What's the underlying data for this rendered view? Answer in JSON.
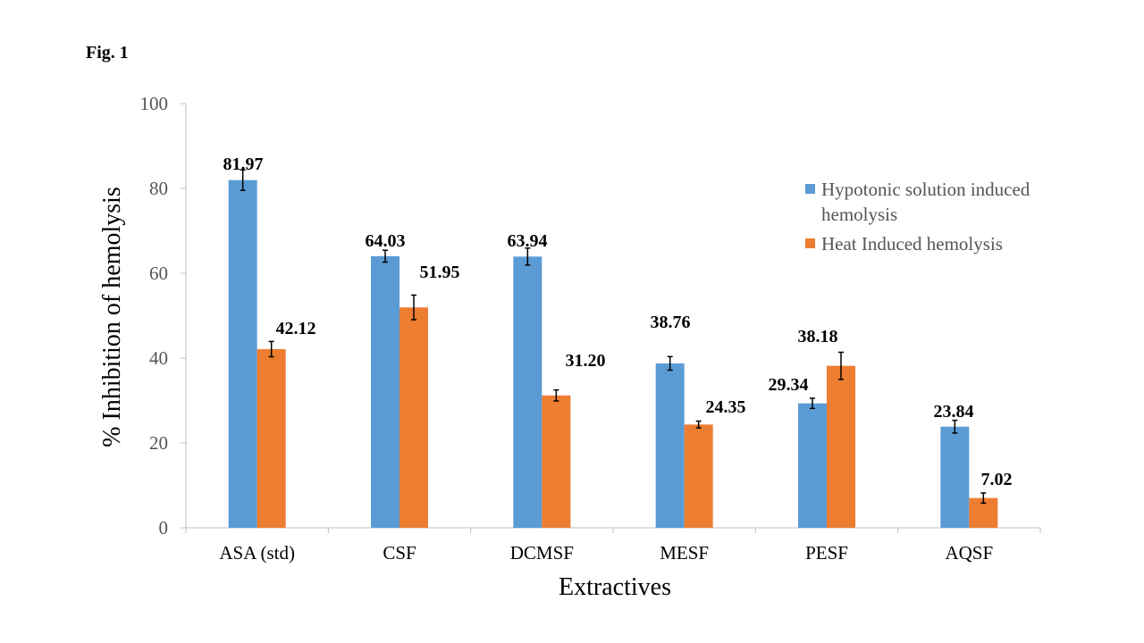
{
  "figure_label": "Fig. 1",
  "chart_data": {
    "type": "bar",
    "categories": [
      "ASA (std)",
      "CSF",
      "DCMSF",
      "MESF",
      "PESF",
      "AQSF"
    ],
    "series": [
      {
        "name": "Hypotonic solution induced hemolysis",
        "legend_lines": [
          "Hypotonic solution induced",
          "hemolysis"
        ],
        "color": "#5B9BD5",
        "values": [
          81.97,
          64.03,
          63.94,
          38.76,
          29.34,
          23.84
        ],
        "errors": [
          2.4,
          1.4,
          2.0,
          1.6,
          1.2,
          1.5
        ],
        "labels": [
          "81.97",
          "64.03",
          "63.94",
          "38.76",
          "29.34",
          "23.84"
        ]
      },
      {
        "name": "Heat Induced hemolysis",
        "legend_lines": [
          "Heat Induced hemolysis"
        ],
        "color": "#ED7D31",
        "values": [
          42.12,
          51.95,
          31.2,
          24.35,
          38.18,
          7.02
        ],
        "errors": [
          1.8,
          2.9,
          1.3,
          0.8,
          3.2,
          1.2
        ],
        "labels": [
          "42.12",
          "51.95",
          "31.20",
          "24.35",
          "38.18",
          "7.02"
        ]
      }
    ],
    "xlabel": "Extractives",
    "ylabel": "%  Inhibition of hemolysis",
    "ylim": [
      0,
      100
    ],
    "yticks": [
      "0",
      "20",
      "40",
      "60",
      "80",
      "100"
    ],
    "grid": false,
    "legend_position": "right"
  }
}
